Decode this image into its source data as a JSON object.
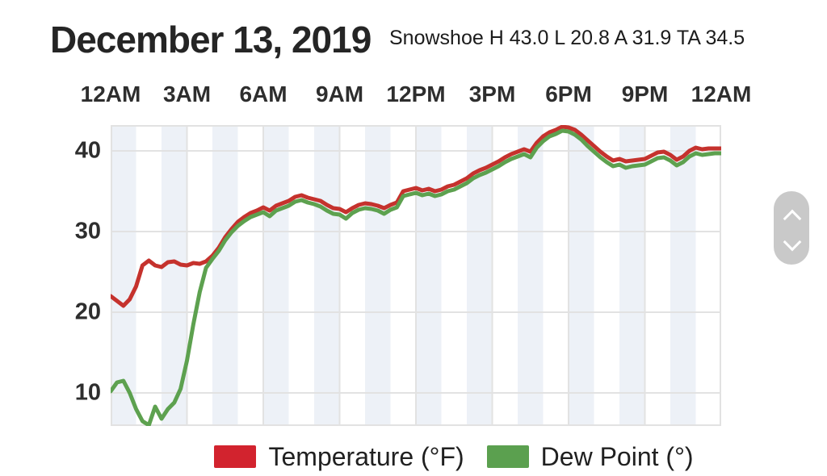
{
  "header": {
    "title": "December 13, 2019",
    "stats": "Snowshoe H 43.0 L 20.8 A 31.9 TA 34.5"
  },
  "legend": {
    "items": [
      {
        "label": "Temperature (°F)",
        "color": "#d2232e"
      },
      {
        "label": "Dew Point (°)",
        "color": "#5ba04f"
      }
    ]
  },
  "icons": {
    "scroll_up": "chevron-up",
    "scroll_down": "chevron-down"
  },
  "chart_data": {
    "type": "line",
    "title": "December 13, 2019",
    "subtitle": "Snowshoe H 43.0 L 20.8 A 31.9 TA 34.5",
    "x_unit": "hour-of-day",
    "xlim": [
      0,
      24
    ],
    "ylim": [
      5.9,
      43.2
    ],
    "x_start": 0,
    "x_step": 0.25,
    "x_ticks": [
      {
        "t": 0,
        "label": "12AM"
      },
      {
        "t": 3,
        "label": "3AM"
      },
      {
        "t": 6,
        "label": "6AM"
      },
      {
        "t": 9,
        "label": "9AM"
      },
      {
        "t": 12,
        "label": "12PM"
      },
      {
        "t": 15,
        "label": "3PM"
      },
      {
        "t": 18,
        "label": "6PM"
      },
      {
        "t": 21,
        "label": "9PM"
      },
      {
        "t": 24,
        "label": "12AM"
      }
    ],
    "y_ticks": [
      10,
      20,
      30,
      40
    ],
    "grid": true,
    "band_hours": 1,
    "band_color": "#edf1f7",
    "grid_color": "#e2e2e2",
    "legend_position": "bottom",
    "series": [
      {
        "name": "Temperature (°F)",
        "color": "#c5322d",
        "values": [
          22.0,
          21.4,
          20.8,
          21.6,
          23.2,
          25.8,
          26.4,
          25.8,
          25.6,
          26.2,
          26.3,
          25.9,
          25.8,
          26.1,
          26.0,
          26.3,
          27.0,
          28.0,
          29.3,
          30.3,
          31.2,
          31.8,
          32.3,
          32.6,
          33.0,
          32.6,
          33.2,
          33.5,
          33.8,
          34.3,
          34.5,
          34.2,
          34.0,
          33.8,
          33.3,
          32.9,
          32.8,
          32.4,
          32.9,
          33.3,
          33.5,
          33.4,
          33.2,
          32.9,
          33.3,
          33.6,
          35.0,
          35.2,
          35.4,
          35.1,
          35.3,
          35.0,
          35.2,
          35.6,
          35.8,
          36.2,
          36.6,
          37.2,
          37.6,
          37.9,
          38.3,
          38.7,
          39.2,
          39.6,
          39.9,
          40.2,
          39.9,
          41.0,
          41.8,
          42.3,
          42.6,
          43.0,
          42.9,
          42.6,
          42.0,
          41.3,
          40.6,
          39.9,
          39.3,
          38.8,
          39.0,
          38.7,
          38.8,
          38.9,
          39.0,
          39.4,
          39.8,
          39.9,
          39.5,
          38.9,
          39.3,
          40.0,
          40.4,
          40.2,
          40.3,
          40.3,
          40.3
        ]
      },
      {
        "name": "Dew Point (°)",
        "color": "#5da14f",
        "values": [
          10.2,
          11.3,
          11.5,
          10.0,
          8.0,
          6.5,
          6.0,
          8.3,
          6.8,
          8.0,
          8.8,
          10.5,
          14.0,
          18.5,
          22.5,
          25.5,
          26.6,
          27.6,
          28.9,
          29.9,
          30.7,
          31.3,
          31.8,
          32.1,
          32.4,
          31.9,
          32.6,
          32.9,
          33.2,
          33.7,
          33.9,
          33.6,
          33.4,
          33.1,
          32.6,
          32.2,
          32.1,
          31.6,
          32.3,
          32.7,
          32.9,
          32.8,
          32.6,
          32.2,
          32.7,
          33.0,
          34.4,
          34.6,
          34.8,
          34.5,
          34.7,
          34.4,
          34.6,
          35.0,
          35.2,
          35.6,
          36.0,
          36.6,
          37.0,
          37.3,
          37.7,
          38.1,
          38.6,
          39.0,
          39.3,
          39.6,
          39.2,
          40.4,
          41.2,
          41.8,
          42.1,
          42.5,
          42.4,
          42.0,
          41.4,
          40.6,
          39.9,
          39.2,
          38.6,
          38.1,
          38.3,
          37.9,
          38.1,
          38.2,
          38.3,
          38.7,
          39.1,
          39.2,
          38.8,
          38.2,
          38.6,
          39.3,
          39.7,
          39.5,
          39.6,
          39.7,
          39.7
        ]
      }
    ]
  }
}
